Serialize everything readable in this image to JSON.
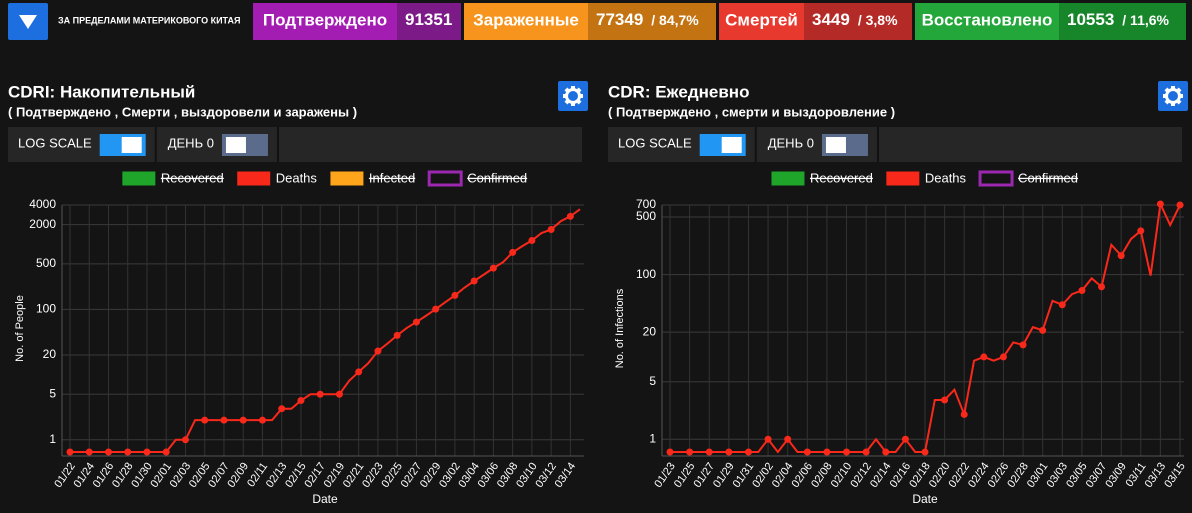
{
  "header": {
    "region": "ЗА ПРЕДЕЛАМИ МАТЕРИКОВОГО КИТАЯ",
    "stats": [
      {
        "label": "Подтверждено",
        "value": 91351,
        "color": "#a41db3",
        "dark": "#7c1a88"
      },
      {
        "label": "Зараженные",
        "value": 77349,
        "share": "/ 84,7%",
        "color": "#f7941d",
        "dark": "#c47312"
      },
      {
        "label": "Смертей",
        "value": 3449,
        "share": "/ 3,8%",
        "color": "#e8392f",
        "dark": "#b42a26"
      },
      {
        "label": "Восстановлено",
        "value": 10553,
        "share": "/ 11,6%",
        "color": "#23a63a",
        "dark": "#17862b"
      }
    ]
  },
  "chart_data": [
    {
      "type": "line",
      "title": "CDRI: Накопительный",
      "subtitle": "( Подтверждено , Смерти , выздоровели и заражены )",
      "controls": [
        {
          "label": "LOG SCALE",
          "on": true
        },
        {
          "label": "ДЕНЬ 0",
          "on": false
        }
      ],
      "x_label": "Date",
      "y_label": "No. of People",
      "log_scale": true,
      "grid": true,
      "legend": "top",
      "categories": [
        "01/22",
        null,
        "01/24",
        null,
        "01/26",
        null,
        "01/28",
        null,
        "01/30",
        null,
        "02/01",
        null,
        "02/03",
        null,
        "02/05",
        null,
        "02/07",
        null,
        "02/09",
        null,
        "02/11",
        null,
        "02/13",
        null,
        "02/15",
        null,
        "02/17",
        null,
        "02/19",
        null,
        "02/21",
        null,
        "02/23",
        null,
        "02/25",
        null,
        "02/27",
        null,
        "02/29",
        null,
        "03/02",
        null,
        "03/04",
        null,
        "03/06",
        null,
        "03/08",
        null,
        "03/10",
        null,
        "03/12",
        null,
        "03/14",
        null
      ],
      "series": [
        {
          "name": "Recovered",
          "color": "#1ea52a",
          "hidden": true
        },
        {
          "name": "Deaths",
          "color": "#f8291b",
          "values": [
            0,
            0,
            0,
            0,
            0,
            0,
            0,
            0,
            0,
            0,
            0,
            1,
            1,
            2,
            2,
            2,
            2,
            2,
            2,
            2,
            2,
            2,
            3,
            3,
            4,
            5,
            5,
            5,
            5,
            8,
            11,
            15,
            23,
            30,
            40,
            52,
            64,
            80,
            101,
            129,
            164,
            216,
            273,
            342,
            430,
            531,
            749,
            936,
            1142,
            1487,
            1683,
            2252,
            2682,
            3449
          ]
        },
        {
          "name": "Infected",
          "color": "#ffa51b",
          "hidden": true
        },
        {
          "name": "Confirmed",
          "color": "#9c27b0",
          "hidden": true,
          "filled": false
        }
      ],
      "ylim": [
        0.65,
        4000
      ],
      "yticks": [
        1,
        5,
        20,
        100,
        500,
        2000,
        4000
      ]
    },
    {
      "type": "line",
      "title": "CDR: Ежедневно",
      "subtitle": "( Подтверждено , смерти и выздоровление )",
      "controls": [
        {
          "label": "LOG SCALE",
          "on": true
        },
        {
          "label": "ДЕНЬ 0",
          "on": false
        }
      ],
      "x_label": "Date",
      "y_label": "No. of Infections",
      "log_scale": true,
      "grid": true,
      "legend": "top",
      "categories": [
        "01/23",
        null,
        "01/25",
        null,
        "01/27",
        null,
        "01/29",
        null,
        "01/31",
        null,
        "02/02",
        null,
        "02/04",
        null,
        "02/06",
        null,
        "02/08",
        null,
        "02/10",
        null,
        "02/12",
        null,
        "02/14",
        null,
        "02/16",
        null,
        "02/18",
        null,
        "02/20",
        null,
        "02/22",
        null,
        "02/24",
        null,
        "02/26",
        null,
        "02/28",
        null,
        "03/01",
        null,
        "03/03",
        null,
        "03/05",
        null,
        "03/07",
        null,
        "03/09",
        null,
        "03/11",
        null,
        "03/13",
        null,
        "03/15"
      ],
      "series": [
        {
          "name": "Recovered",
          "color": "#1ea52a",
          "hidden": true
        },
        {
          "name": "Deaths",
          "color": "#f8291b",
          "values": [
            0,
            0,
            0,
            0,
            0,
            0,
            0,
            0,
            0,
            0,
            1,
            0,
            1,
            0,
            0,
            0,
            0,
            0,
            0,
            0,
            0,
            1,
            0,
            0,
            1,
            0,
            0,
            3,
            3,
            4,
            2,
            9,
            10,
            9,
            10,
            15,
            14,
            23,
            21,
            48,
            43,
            58,
            64,
            90,
            71,
            230,
            170,
            270,
            340,
            97,
            720,
            400,
            700
          ]
        },
        {
          "name": "Confirmed",
          "color": "#9c27b0",
          "hidden": true,
          "filled": false
        }
      ],
      "ylim": [
        0.7,
        700
      ],
      "yticks": [
        1,
        5,
        20,
        100,
        500,
        700
      ]
    }
  ]
}
